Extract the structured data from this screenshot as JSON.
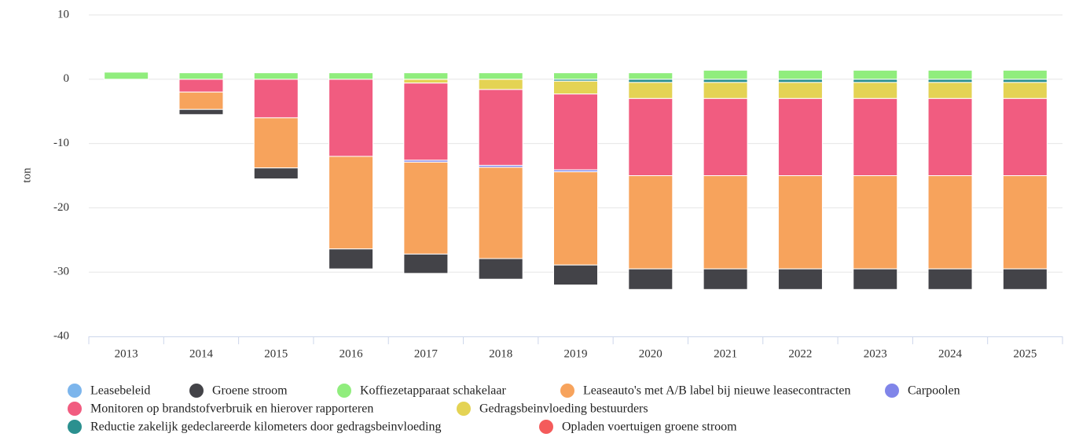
{
  "chart_data": {
    "type": "bar",
    "stacked": true,
    "y_label": "ton",
    "categories": [
      "2013",
      "2014",
      "2015",
      "2016",
      "2017",
      "2018",
      "2019",
      "2020",
      "2021",
      "2022",
      "2023",
      "2024",
      "2025"
    ],
    "ylim": [
      -40,
      10
    ],
    "yticks": [
      10,
      0,
      -10,
      -20,
      -30,
      -40
    ],
    "grid": true,
    "series": [
      {
        "name": "Leasebeleid",
        "color": "#7cb5ec",
        "values": [
          0,
          0,
          0,
          0,
          0,
          0,
          0,
          0,
          0,
          0,
          0,
          0,
          0
        ]
      },
      {
        "name": "Groene stroom",
        "color": "#434348",
        "values": [
          0,
          -0.8,
          -1.7,
          -3.1,
          -3,
          -3.2,
          -3.1,
          -3.2,
          -3.2,
          -3.2,
          -3.2,
          -3.2,
          -3.2
        ]
      },
      {
        "name": "Koffiezetapparaat schakelaar",
        "color": "#90ed7d",
        "values": [
          1.1,
          1,
          1,
          1,
          1,
          1,
          1,
          1,
          1.4,
          1.4,
          1.4,
          1.4,
          1.4
        ]
      },
      {
        "name": "Leaseauto's met A/B label bij nieuwe leasecontracten",
        "color": "#f7a35c",
        "values": [
          0,
          -2.7,
          -7.8,
          -14.4,
          -14.3,
          -14.2,
          -14.5,
          -14.5,
          -14.5,
          -14.5,
          -14.5,
          -14.5,
          -14.5
        ]
      },
      {
        "name": "Carpoolen",
        "color": "#8085e9",
        "values": [
          0,
          0,
          0,
          0,
          -0.3,
          -0.3,
          -0.3,
          0,
          0,
          0,
          0,
          0,
          0
        ]
      },
      {
        "name": "Monitoren op brandstofverbruik en hierover rapporteren",
        "color": "#f15c80",
        "values": [
          0,
          -2,
          -6,
          -12,
          -12,
          -11.8,
          -11.8,
          -12,
          -12,
          -12,
          -12,
          -12,
          -12
        ]
      },
      {
        "name": "Gedragsbeinvloeding bestuurders",
        "color": "#e4d354",
        "values": [
          0,
          0,
          0,
          0,
          -0.6,
          -1.6,
          -2,
          -2.5,
          -2.5,
          -2.5,
          -2.5,
          -2.5,
          -2.5
        ]
      },
      {
        "name": "Reductie zakelijk gedeclareerde kilometers door gedragsbeinvloeding",
        "color": "#2b908f",
        "values": [
          0,
          0,
          0,
          0,
          0,
          0,
          -0.3,
          -0.5,
          -0.5,
          -0.5,
          -0.5,
          -0.5,
          -0.5
        ]
      },
      {
        "name": "Opladen voertuigen groene stroom",
        "color": "#f45b5b",
        "values": [
          0,
          0,
          0,
          0,
          0,
          0,
          0,
          0,
          0,
          0,
          0,
          0,
          0
        ]
      }
    ]
  }
}
